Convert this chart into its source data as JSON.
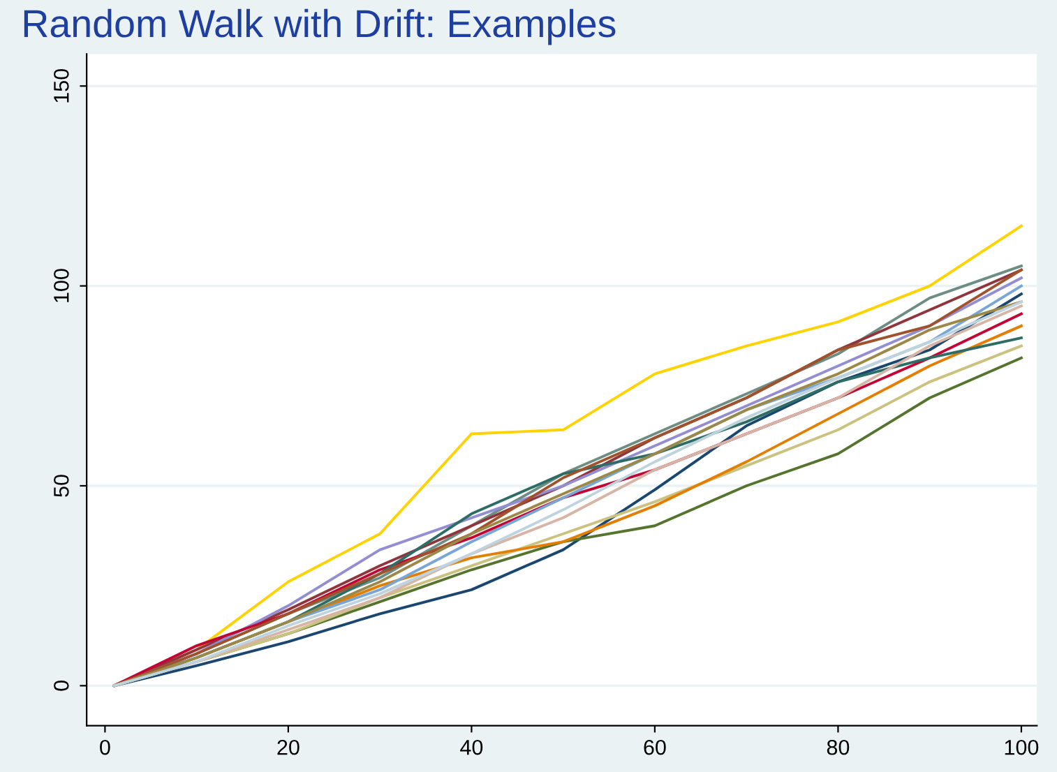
{
  "chart_data": {
    "type": "line",
    "title": "Random Walk with Drift: Examples",
    "x": [
      1,
      10,
      20,
      30,
      40,
      50,
      60,
      70,
      80,
      90,
      100
    ],
    "series": [
      {
        "color": "#ffd200",
        "values": [
          0,
          9,
          26,
          38,
          63,
          64,
          78,
          85,
          91,
          100,
          115
        ]
      },
      {
        "color": "#1a476f",
        "values": [
          0,
          5,
          11,
          18,
          24,
          34,
          49,
          65,
          76,
          84,
          98
        ]
      },
      {
        "color": "#55752f",
        "values": [
          0,
          6,
          13,
          21,
          29,
          36,
          40,
          50,
          58,
          72,
          82
        ]
      },
      {
        "color": "#cac27e",
        "values": [
          0,
          6,
          13,
          22,
          30,
          38,
          46,
          55,
          64,
          76,
          85
        ]
      },
      {
        "color": "#e37e00",
        "values": [
          0,
          7,
          16,
          25,
          32,
          36,
          45,
          56,
          68,
          80,
          90
        ]
      },
      {
        "color": "#6e8e84",
        "values": [
          0,
          8,
          18,
          27,
          40,
          53,
          63,
          73,
          83,
          97,
          105
        ]
      },
      {
        "color": "#90353b",
        "values": [
          0,
          9,
          19,
          30,
          40,
          50,
          62,
          72,
          84,
          94,
          104
        ]
      },
      {
        "color": "#938dd2",
        "values": [
          0,
          8,
          20,
          34,
          42,
          50,
          60,
          70,
          80,
          90,
          102
        ]
      },
      {
        "color": "#c10534",
        "values": [
          0,
          10,
          18,
          29,
          37,
          47,
          54,
          63,
          72,
          82,
          93
        ]
      },
      {
        "color": "#2d6d66",
        "values": [
          0,
          7,
          16,
          28,
          43,
          53,
          58,
          66,
          76,
          82,
          87
        ]
      },
      {
        "color": "#7aa6d7",
        "values": [
          0,
          7,
          16,
          24,
          36,
          47,
          58,
          69,
          77,
          86,
          100
        ]
      },
      {
        "color": "#a0522d",
        "values": [
          0,
          8,
          18,
          28,
          38,
          52,
          62,
          72,
          84,
          90,
          104
        ]
      },
      {
        "color": "#d7b5a6",
        "values": [
          0,
          6,
          14,
          22,
          33,
          42,
          54,
          63,
          72,
          85,
          95
        ]
      },
      {
        "color": "#9c8847",
        "values": [
          0,
          7,
          16,
          26,
          38,
          48,
          58,
          69,
          78,
          89,
          96
        ]
      },
      {
        "color": "#bfd3df",
        "values": [
          0,
          6,
          15,
          23,
          33,
          44,
          56,
          67,
          77,
          86,
          96
        ]
      }
    ],
    "xlim": [
      -2,
      101.7
    ],
    "ylim": [
      -10,
      158
    ],
    "xticks": [
      0,
      20,
      40,
      60,
      80,
      100
    ],
    "yticks": [
      0,
      50,
      100,
      150
    ],
    "grid": "y",
    "legend": false,
    "marker": "none",
    "line_style": "solid"
  }
}
